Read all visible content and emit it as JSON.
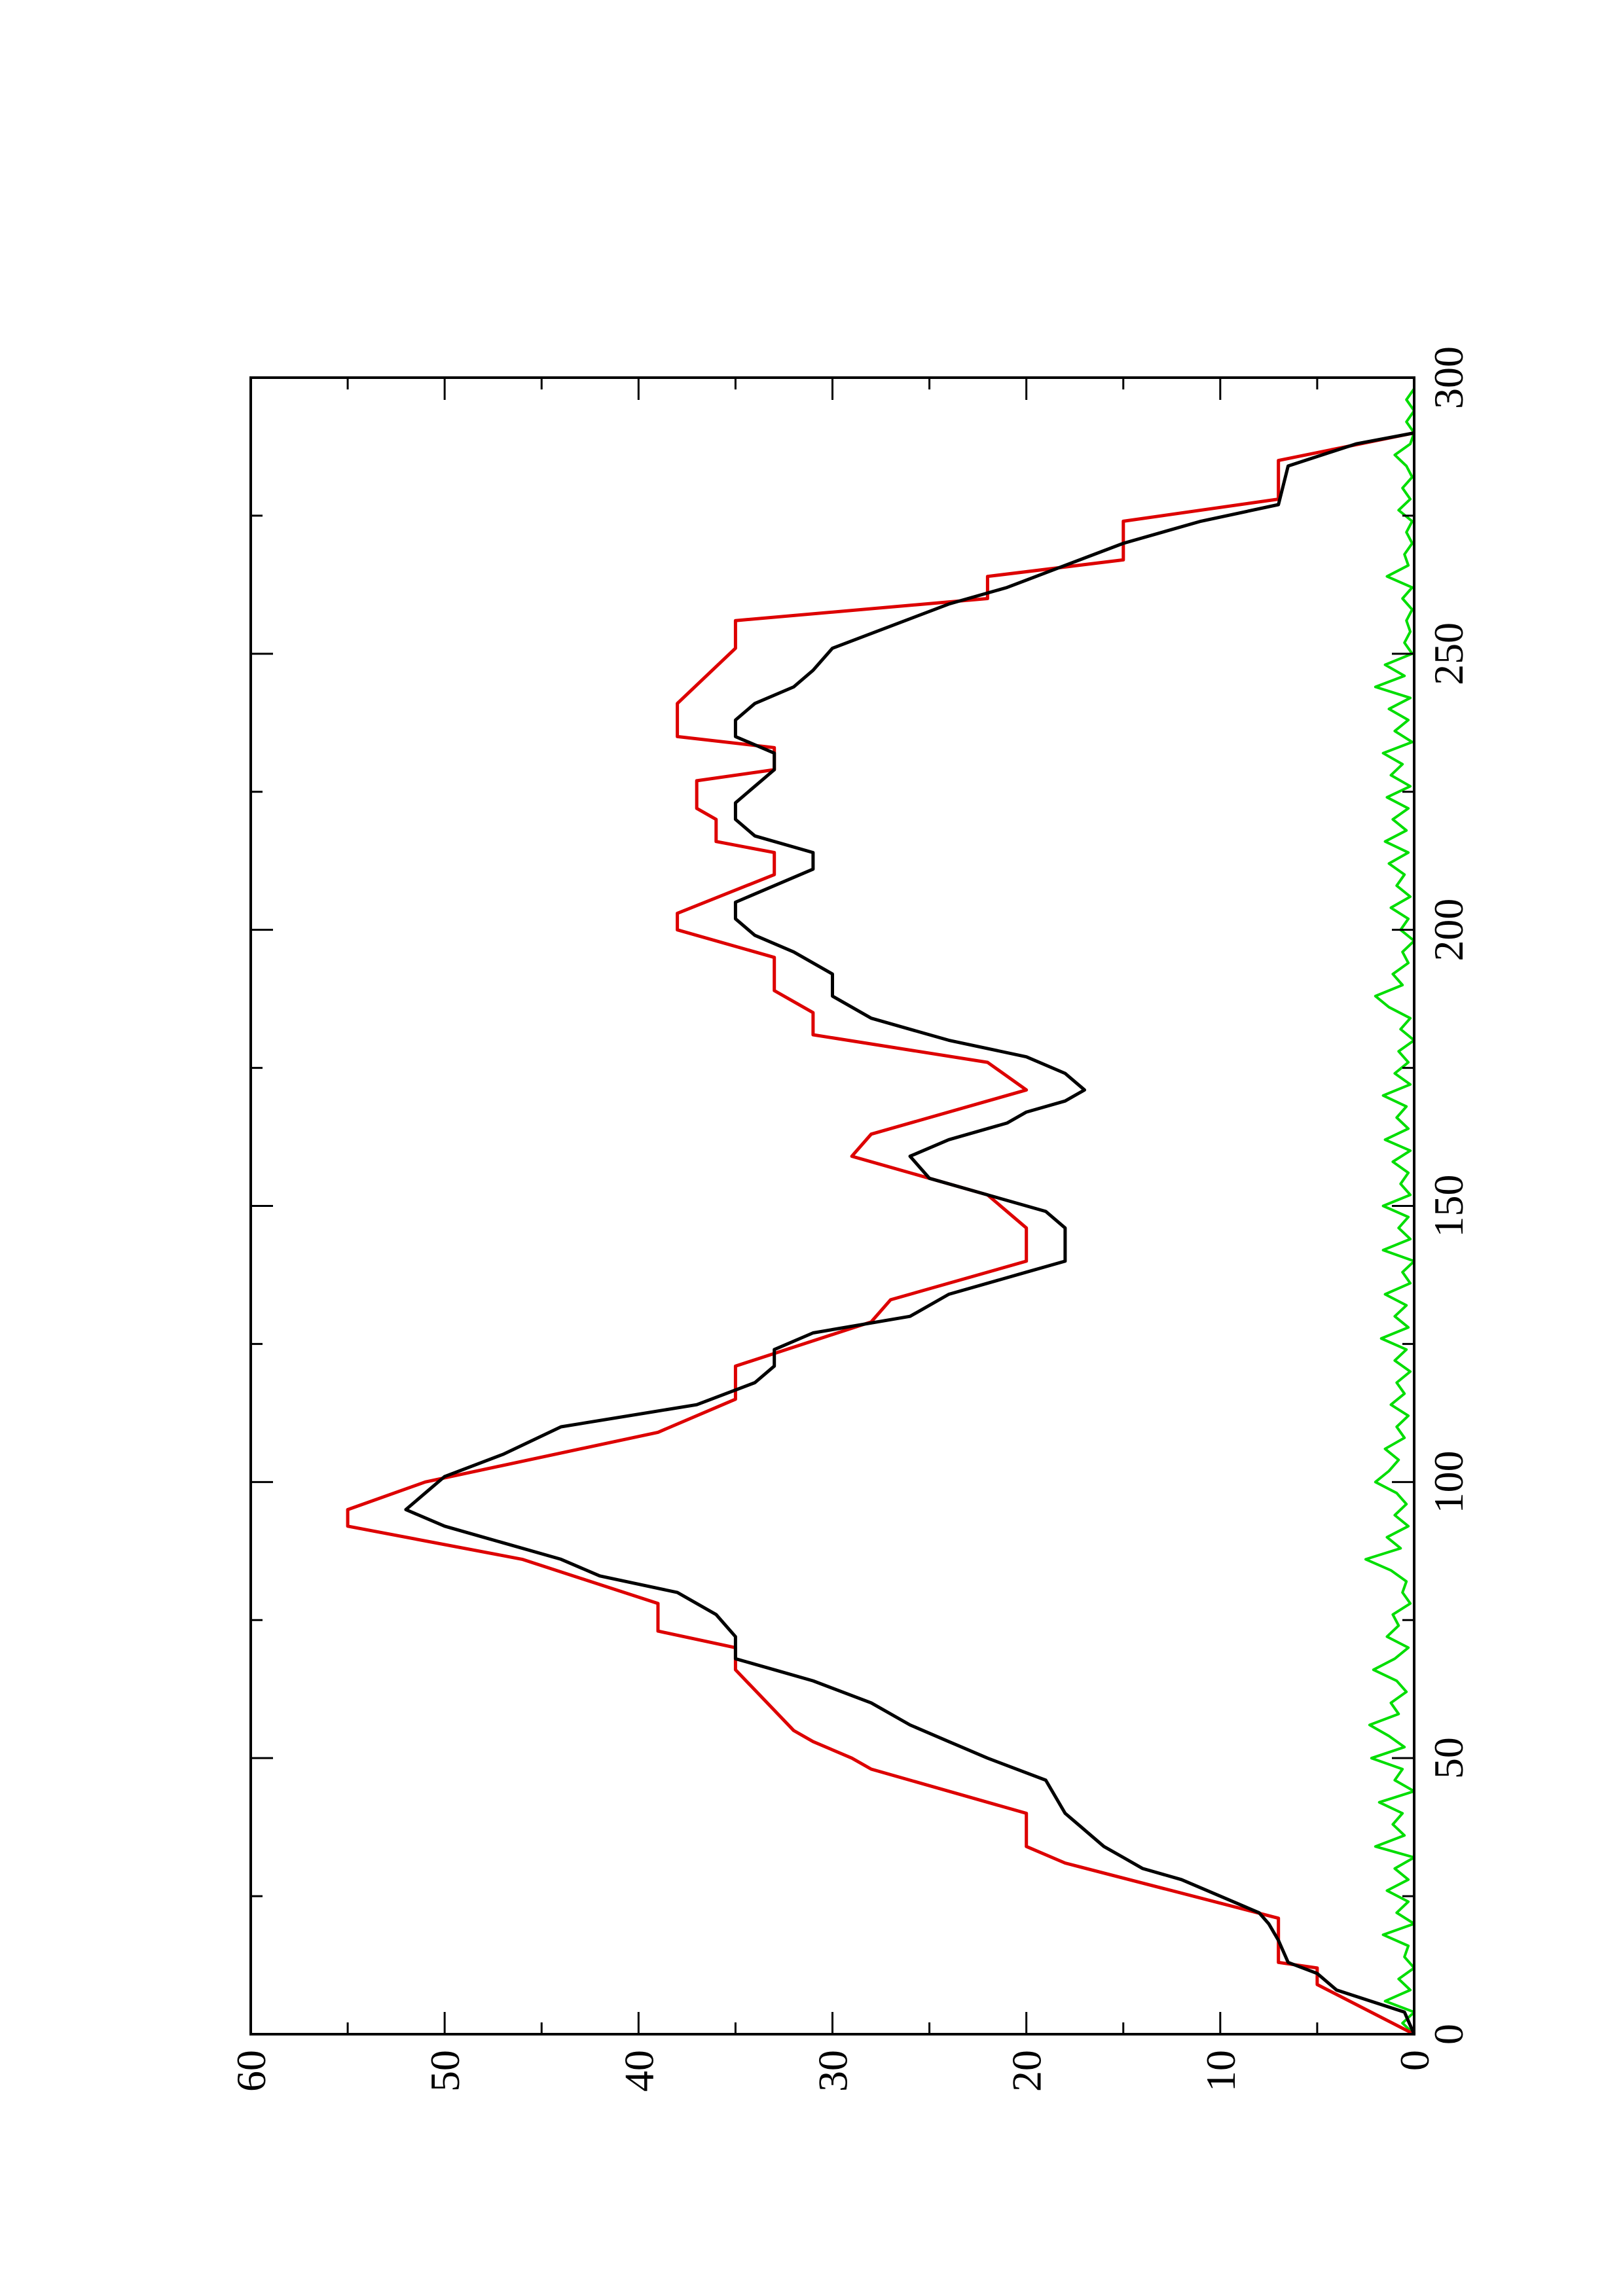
{
  "chart_data": {
    "type": "line",
    "orientation": "rotated-90-ccw",
    "title": "",
    "xlabel": "",
    "ylabel": "",
    "xlim": [
      0,
      300
    ],
    "ylim": [
      0,
      60
    ],
    "x_ticks": [
      "0",
      "50",
      "100",
      "150",
      "200",
      "250",
      "300"
    ],
    "y_ticks": [
      "0",
      "10",
      "20",
      "30",
      "40",
      "50",
      "60"
    ],
    "grid": false,
    "legend": "none",
    "series": [
      {
        "color": "#dd0000",
        "style": "step-and-ramp",
        "points": [
          [
            0,
            0
          ],
          [
            9,
            5
          ],
          [
            12,
            5
          ],
          [
            13,
            7
          ],
          [
            21,
            7
          ],
          [
            31,
            18
          ],
          [
            34,
            20
          ],
          [
            40,
            20
          ],
          [
            48,
            28
          ],
          [
            50,
            29
          ],
          [
            53,
            31
          ],
          [
            55,
            32
          ],
          [
            66,
            35
          ],
          [
            70,
            35
          ],
          [
            73,
            39
          ],
          [
            78,
            39
          ],
          [
            86,
            46
          ],
          [
            92,
            55
          ],
          [
            95,
            55
          ],
          [
            100,
            51
          ],
          [
            109,
            39
          ],
          [
            115,
            35
          ],
          [
            121,
            35
          ],
          [
            129,
            28
          ],
          [
            133,
            27
          ],
          [
            140,
            20
          ],
          [
            146,
            20
          ],
          [
            152,
            22
          ],
          [
            159,
            29
          ],
          [
            163,
            28
          ],
          [
            169,
            22
          ],
          [
            171,
            20
          ],
          [
            176,
            22
          ],
          [
            181,
            31
          ],
          [
            185,
            31
          ],
          [
            189,
            33
          ],
          [
            195,
            33
          ],
          [
            200,
            38
          ],
          [
            203,
            38
          ],
          [
            210,
            33
          ],
          [
            214,
            33
          ],
          [
            216,
            36
          ],
          [
            220,
            36
          ],
          [
            222,
            37
          ],
          [
            227,
            37
          ],
          [
            229,
            33
          ],
          [
            233,
            33
          ],
          [
            235,
            38
          ],
          [
            241,
            38
          ],
          [
            251,
            35
          ],
          [
            256,
            35
          ],
          [
            260,
            22
          ],
          [
            264,
            22
          ],
          [
            267,
            15
          ],
          [
            274,
            15
          ],
          [
            278,
            7
          ],
          [
            285,
            7
          ],
          [
            290,
            0
          ]
        ]
      },
      {
        "color": "#000000",
        "style": "smooth",
        "points": [
          [
            0,
            0
          ],
          [
            4,
            0.5
          ],
          [
            8,
            4
          ],
          [
            11,
            5
          ],
          [
            13,
            6.5
          ],
          [
            17,
            7
          ],
          [
            20,
            7.5
          ],
          [
            22,
            8
          ],
          [
            25,
            10
          ],
          [
            28,
            12
          ],
          [
            30,
            14
          ],
          [
            32,
            15
          ],
          [
            34,
            16
          ],
          [
            37,
            17
          ],
          [
            40,
            18
          ],
          [
            46,
            19
          ],
          [
            50,
            22
          ],
          [
            53,
            24
          ],
          [
            56,
            26
          ],
          [
            60,
            28
          ],
          [
            64,
            31
          ],
          [
            66,
            33
          ],
          [
            68,
            35
          ],
          [
            72,
            35
          ],
          [
            76,
            36
          ],
          [
            80,
            38
          ],
          [
            83,
            42
          ],
          [
            86,
            44
          ],
          [
            90,
            48
          ],
          [
            92,
            50
          ],
          [
            95,
            52
          ],
          [
            98,
            51
          ],
          [
            101,
            50
          ],
          [
            105,
            47
          ],
          [
            110,
            44
          ],
          [
            114,
            37
          ],
          [
            118,
            34
          ],
          [
            121,
            33
          ],
          [
            124,
            33
          ],
          [
            127,
            31
          ],
          [
            130,
            26
          ],
          [
            134,
            24
          ],
          [
            138,
            20
          ],
          [
            140,
            18
          ],
          [
            143,
            18
          ],
          [
            146,
            18
          ],
          [
            149,
            19
          ],
          [
            152,
            22
          ],
          [
            155,
            25
          ],
          [
            159,
            26
          ],
          [
            162,
            24
          ],
          [
            165,
            21
          ],
          [
            167,
            20
          ],
          [
            169,
            18
          ],
          [
            171,
            17
          ],
          [
            174,
            18
          ],
          [
            177,
            20
          ],
          [
            180,
            24
          ],
          [
            184,
            28
          ],
          [
            188,
            30
          ],
          [
            192,
            30
          ],
          [
            196,
            32
          ],
          [
            199,
            34
          ],
          [
            202,
            35
          ],
          [
            205,
            35
          ],
          [
            208,
            33
          ],
          [
            211,
            31
          ],
          [
            214,
            31
          ],
          [
            217,
            34
          ],
          [
            220,
            35
          ],
          [
            223,
            35
          ],
          [
            226,
            34
          ],
          [
            229,
            33
          ],
          [
            232,
            33
          ],
          [
            235,
            35
          ],
          [
            238,
            35
          ],
          [
            241,
            34
          ],
          [
            244,
            32
          ],
          [
            247,
            31
          ],
          [
            251,
            30
          ],
          [
            255,
            27
          ],
          [
            259,
            24
          ],
          [
            262,
            21
          ],
          [
            266,
            18
          ],
          [
            270,
            15
          ],
          [
            274,
            11
          ],
          [
            277,
            7
          ],
          [
            284,
            6.5
          ],
          [
            288,
            3
          ],
          [
            290,
            0
          ]
        ]
      },
      {
        "color": "#00dd00",
        "style": "noise",
        "points": [
          [
            0,
            0
          ],
          [
            2,
            0.6
          ],
          [
            4,
            0
          ],
          [
            6,
            1.5
          ],
          [
            8,
            0.2
          ],
          [
            10,
            0.8
          ],
          [
            12,
            0
          ],
          [
            14,
            0.5
          ],
          [
            16,
            0.3
          ],
          [
            18,
            1.6
          ],
          [
            20,
            0
          ],
          [
            22,
            0.9
          ],
          [
            24,
            0.3
          ],
          [
            26,
            1.4
          ],
          [
            28,
            0.3
          ],
          [
            30,
            1.0
          ],
          [
            32,
            0
          ],
          [
            34,
            2.0
          ],
          [
            36,
            0.5
          ],
          [
            38,
            1.1
          ],
          [
            40,
            0.6
          ],
          [
            42,
            1.8
          ],
          [
            44,
            0
          ],
          [
            46,
            1.0
          ],
          [
            48,
            0.6
          ],
          [
            50,
            2.2
          ],
          [
            52,
            0.5
          ],
          [
            54,
            1.3
          ],
          [
            56,
            2.3
          ],
          [
            58,
            0.8
          ],
          [
            60,
            1.2
          ],
          [
            62,
            0.4
          ],
          [
            64,
            0.9
          ],
          [
            66,
            2.1
          ],
          [
            68,
            1.0
          ],
          [
            70,
            0.3
          ],
          [
            72,
            1.4
          ],
          [
            74,
            0.8
          ],
          [
            76,
            1.1
          ],
          [
            78,
            0.2
          ],
          [
            80,
            0.6
          ],
          [
            82,
            0.4
          ],
          [
            84,
            1.2
          ],
          [
            86,
            2.5
          ],
          [
            88,
            0.7
          ],
          [
            90,
            1.4
          ],
          [
            92,
            0.3
          ],
          [
            94,
            1.0
          ],
          [
            96,
            0.4
          ],
          [
            98,
            0.9
          ],
          [
            100,
            2.0
          ],
          [
            102,
            1.3
          ],
          [
            104,
            0.8
          ],
          [
            106,
            1.5
          ],
          [
            108,
            0.5
          ],
          [
            110,
            0.9
          ],
          [
            112,
            0.3
          ],
          [
            114,
            1.2
          ],
          [
            116,
            0.5
          ],
          [
            118,
            0.9
          ],
          [
            120,
            0.2
          ],
          [
            122,
            1.0
          ],
          [
            124,
            0.4
          ],
          [
            126,
            1.7
          ],
          [
            128,
            0.3
          ],
          [
            130,
            1.0
          ],
          [
            132,
            0.4
          ],
          [
            134,
            1.5
          ],
          [
            136,
            0.2
          ],
          [
            138,
            0.6
          ],
          [
            140,
            0
          ],
          [
            142,
            1.6
          ],
          [
            144,
            0.2
          ],
          [
            146,
            0.8
          ],
          [
            148,
            0.3
          ],
          [
            150,
            1.6
          ],
          [
            152,
            0.2
          ],
          [
            154,
            0.7
          ],
          [
            156,
            0.3
          ],
          [
            158,
            1.1
          ],
          [
            160,
            0.2
          ],
          [
            162,
            1.5
          ],
          [
            164,
            0.3
          ],
          [
            166,
            0.9
          ],
          [
            168,
            0.4
          ],
          [
            170,
            1.6
          ],
          [
            172,
            0.2
          ],
          [
            174,
            1.0
          ],
          [
            176,
            0.3
          ],
          [
            178,
            0.8
          ],
          [
            180,
            0
          ],
          [
            182,
            0.7
          ],
          [
            184,
            0.2
          ],
          [
            186,
            1.3
          ],
          [
            188,
            2.0
          ],
          [
            190,
            0.6
          ],
          [
            192,
            1.1
          ],
          [
            194,
            0.3
          ],
          [
            196,
            0.6
          ],
          [
            198,
            0
          ],
          [
            200,
            0.7
          ],
          [
            202,
            0.3
          ],
          [
            204,
            1.2
          ],
          [
            206,
            0.2
          ],
          [
            208,
            0.9
          ],
          [
            210,
            0.5
          ],
          [
            212,
            1.3
          ],
          [
            214,
            0.3
          ],
          [
            216,
            1.5
          ],
          [
            218,
            0.4
          ],
          [
            220,
            1.1
          ],
          [
            222,
            0.3
          ],
          [
            224,
            1.4
          ],
          [
            226,
            0.2
          ],
          [
            228,
            1.2
          ],
          [
            230,
            0.6
          ],
          [
            232,
            1.6
          ],
          [
            234,
            0.1
          ],
          [
            236,
            1.0
          ],
          [
            238,
            0.3
          ],
          [
            240,
            1.3
          ],
          [
            242,
            0.2
          ],
          [
            244,
            2.0
          ],
          [
            246,
            0.5
          ],
          [
            248,
            1.5
          ],
          [
            250,
            0.1
          ],
          [
            252,
            0.5
          ],
          [
            254,
            0.2
          ],
          [
            256,
            0.4
          ],
          [
            258,
            0.1
          ],
          [
            260,
            0.6
          ],
          [
            262,
            0.1
          ],
          [
            264,
            1.4
          ],
          [
            266,
            0.3
          ],
          [
            268,
            0.5
          ],
          [
            270,
            0.1
          ],
          [
            272,
            0.4
          ],
          [
            274,
            0.1
          ],
          [
            276,
            0.8
          ],
          [
            278,
            0.2
          ],
          [
            280,
            0.6
          ],
          [
            282,
            0.1
          ],
          [
            284,
            0.4
          ],
          [
            286,
            1.0
          ],
          [
            288,
            0.2
          ],
          [
            290,
            0
          ],
          [
            292,
            0.4
          ],
          [
            294,
            0
          ],
          [
            296,
            0.4
          ],
          [
            298,
            0
          ],
          [
            300,
            0
          ]
        ]
      }
    ]
  }
}
